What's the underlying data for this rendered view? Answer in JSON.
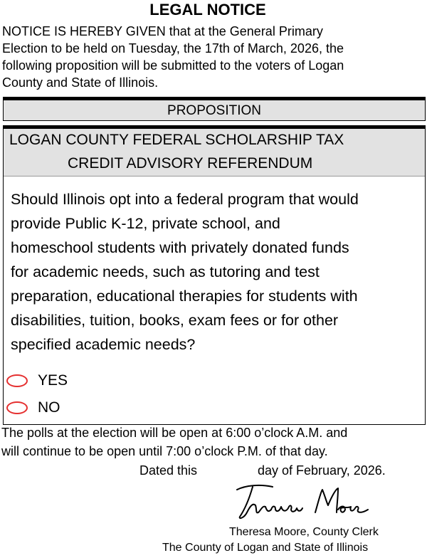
{
  "title": "LEGAL NOTICE",
  "intro_lines": [
    "NOTICE IS HEREBY GIVEN that at the General Primary",
    "Election to be held on Tuesday, the 17th of March, 2026, the",
    "following proposition will be submitted to the voters of Logan",
    "County and State of Illinois."
  ],
  "proposition_header": "PROPOSITION",
  "proposition_title": [
    "LOGAN COUNTY FEDERAL SCHOLARSHIP TAX",
    "CREDIT ADVISORY REFERENDUM"
  ],
  "question_lines": [
    "Should Illinois opt into a federal program that would",
    "provide Public K-12, private school, and",
    "homeschool students with privately donated funds",
    "for academic needs, such as tutoring and test",
    "preparation, educational therapies for students with",
    "disabilities, tuition, books, exam fees or for other",
    "specified academic needs?"
  ],
  "options": [
    {
      "label": "YES"
    },
    {
      "label": "NO"
    }
  ],
  "oval_color": "#e53030",
  "footer_lines": [
    "The polls at the election will be open at 6:00 o’clock A.M. and",
    "will continue to be open until 7:00 o’clock P.M. of that day."
  ],
  "dated": {
    "prefix": "Dated this",
    "suffix": "day of February, 2026."
  },
  "signature": "Theresa Moore",
  "signer": "Theresa Moore, County Clerk",
  "signer_org": "The County of Logan and State of Illinois"
}
